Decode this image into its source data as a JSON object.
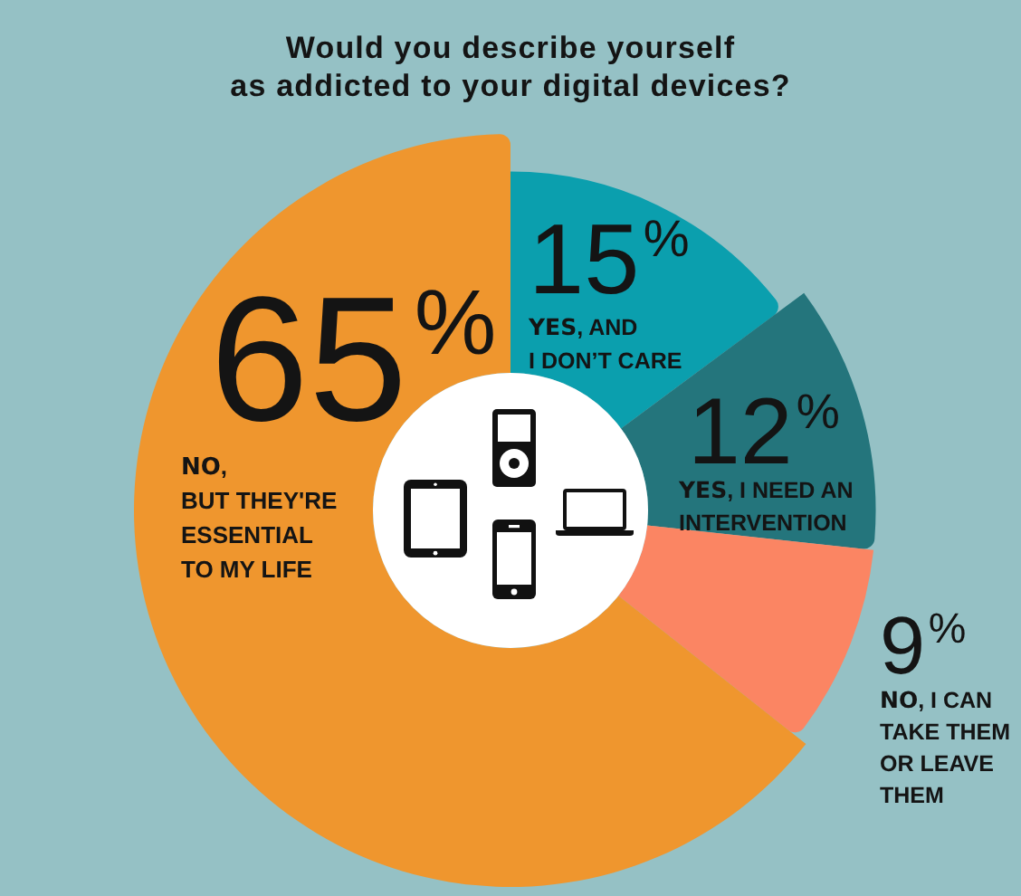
{
  "chart_data": {
    "type": "donut",
    "title": "Would you describe yourself as addicted to your digital devices?",
    "categories": [
      "YES, AND I DON’T CARE",
      "YES, I NEED AN INTERVENTION",
      "NO, I CAN TAKE THEM OR LEAVE THEM",
      "NO, BUT THEY'RE ESSENTIAL TO MY LIFE"
    ],
    "values": [
      15,
      12,
      9,
      65
    ],
    "colors": [
      "#0b9fae",
      "#24757c",
      "#fb8563",
      "#ef962e"
    ],
    "value_labels": [
      "15%",
      "12%",
      "9%",
      "65%"
    ],
    "legend": false
  }
}
